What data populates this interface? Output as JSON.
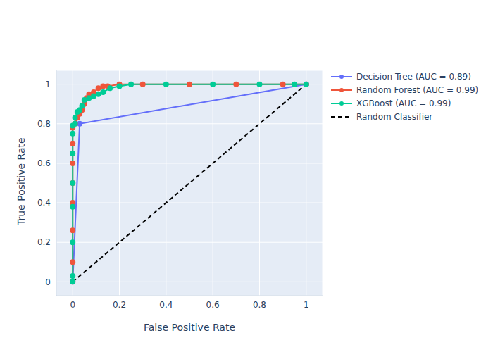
{
  "chart_data": {
    "type": "line",
    "x_label": "False Positive Rate",
    "y_label": "True Positive Rate",
    "xlim": [
      -0.07,
      1.07
    ],
    "ylim": [
      -0.07,
      1.07
    ],
    "xticks": [
      0,
      0.2,
      0.4,
      0.6,
      0.8,
      1
    ],
    "yticks": [
      0,
      0.2,
      0.4,
      0.6,
      0.8,
      1
    ],
    "grid": true,
    "legend": "right",
    "series": [
      {
        "name": "Decision Tree (AUC = 0.89)",
        "color": "#636efa",
        "marker": "circle",
        "line_style": "solid",
        "x": [
          0,
          0.03,
          1
        ],
        "values": [
          0,
          0.8,
          1
        ]
      },
      {
        "name": "Random Forest (AUC = 0.99)",
        "color": "#ef553b",
        "marker": "circle",
        "line_style": "solid",
        "x": [
          0,
          0,
          0,
          0,
          0,
          0,
          0,
          0,
          0.01,
          0.02,
          0.03,
          0.04,
          0.05,
          0.06,
          0.07,
          0.09,
          0.11,
          0.13,
          0.15,
          0.2,
          0.3,
          0.5,
          0.7,
          0.9,
          1
        ],
        "values": [
          0,
          0.1,
          0.26,
          0.4,
          0.5,
          0.6,
          0.7,
          0.78,
          0.8,
          0.83,
          0.85,
          0.87,
          0.9,
          0.93,
          0.95,
          0.96,
          0.98,
          0.99,
          0.99,
          1,
          1,
          1,
          1,
          1,
          1
        ]
      },
      {
        "name": "XGBoost (AUC = 0.99)",
        "color": "#00cc96",
        "marker": "circle",
        "line_style": "solid",
        "x": [
          0,
          0,
          0,
          0,
          0,
          0,
          0,
          0,
          0.01,
          0.01,
          0.02,
          0.03,
          0.04,
          0.05,
          0.07,
          0.09,
          0.11,
          0.13,
          0.16,
          0.2,
          0.25,
          0.4,
          0.6,
          0.8,
          0.95,
          1
        ],
        "values": [
          0,
          0.03,
          0.2,
          0.38,
          0.5,
          0.65,
          0.75,
          0.79,
          0.8,
          0.83,
          0.86,
          0.87,
          0.89,
          0.92,
          0.93,
          0.94,
          0.95,
          0.96,
          0.98,
          0.99,
          1,
          1,
          1,
          1,
          1,
          1
        ]
      },
      {
        "name": "Random Classifier",
        "color": "black",
        "marker": "none",
        "line_style": "dashed",
        "x": [
          0,
          1
        ],
        "values": [
          0,
          1
        ]
      }
    ]
  }
}
